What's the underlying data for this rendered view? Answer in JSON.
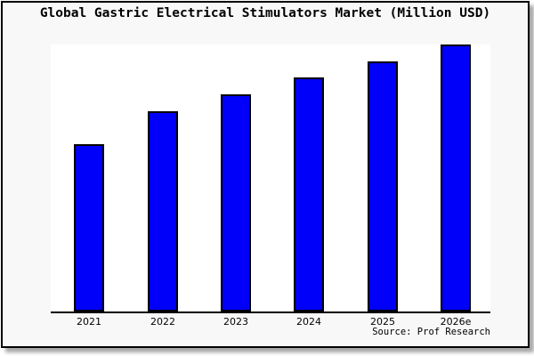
{
  "title": "Global Gastric Electrical Stimulators Market (Million USD)",
  "source": "Source: Prof Research",
  "colors": {
    "bar_fill": "#0000fa",
    "bar_border": "#000000",
    "frame_bg": "#f8f8f8",
    "plot_bg": "#ffffff",
    "axis": "#000000",
    "shadow_gray": "#999999"
  },
  "chart_data": {
    "type": "bar",
    "title": "Global Gastric Electrical Stimulators Market (Million USD)",
    "categories": [
      "2021",
      "2022",
      "2023",
      "2024",
      "2025",
      "2026e"
    ],
    "values": [
      62.7,
      75.0,
      81.3,
      87.7,
      93.7,
      100.0
    ],
    "unit": "percent of tallest bar (y-axis has no tick labels)",
    "xlabel": "",
    "ylabel": "Million USD",
    "ylim": [
      0,
      100
    ],
    "grid": false,
    "legend": false,
    "annotation": "Source: Prof Research"
  }
}
